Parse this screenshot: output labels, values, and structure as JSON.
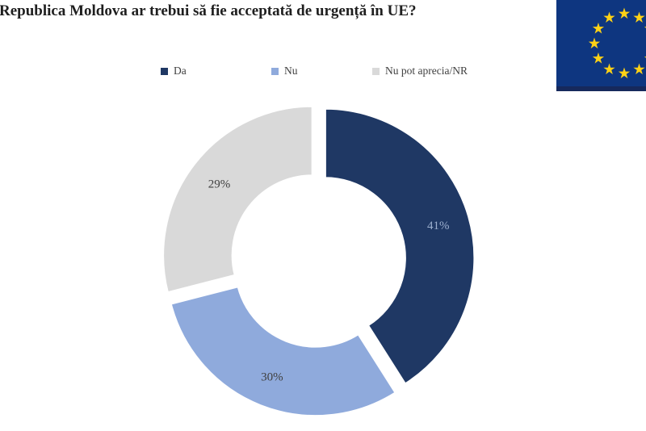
{
  "title": "Republica Moldova ar trebui să fie acceptată de urgență în UE?",
  "legend": [
    {
      "label": "Da",
      "color": "#1f3864"
    },
    {
      "label": "Nu",
      "color": "#8faadc"
    },
    {
      "label": "Nu pot aprecia/NR",
      "color": "#d9d9d9"
    }
  ],
  "chart_data": {
    "type": "pie",
    "subtype": "donut",
    "title": "Republica Moldova ar trebui să fie acceptată de urgență în UE?",
    "categories": [
      "Da",
      "Nu",
      "Nu pot aprecia/NR"
    ],
    "values": [
      41,
      30,
      29
    ],
    "unit": "%",
    "data_labels": [
      "41%",
      "30%",
      "29%"
    ],
    "slice_colors": [
      "#1f3864",
      "#8faadc",
      "#d9d9d9"
    ],
    "label_colors": [
      "#9db0cf",
      "#404040",
      "#404040"
    ],
    "start_angle": 0,
    "direction": "clockwise",
    "legend_position": "top",
    "grid": false
  },
  "flag": {
    "name": "European Union flag",
    "field_color": "#0e3680",
    "shadow_color": "#16295c",
    "star_color": "#fdd116",
    "star_count": 12
  }
}
